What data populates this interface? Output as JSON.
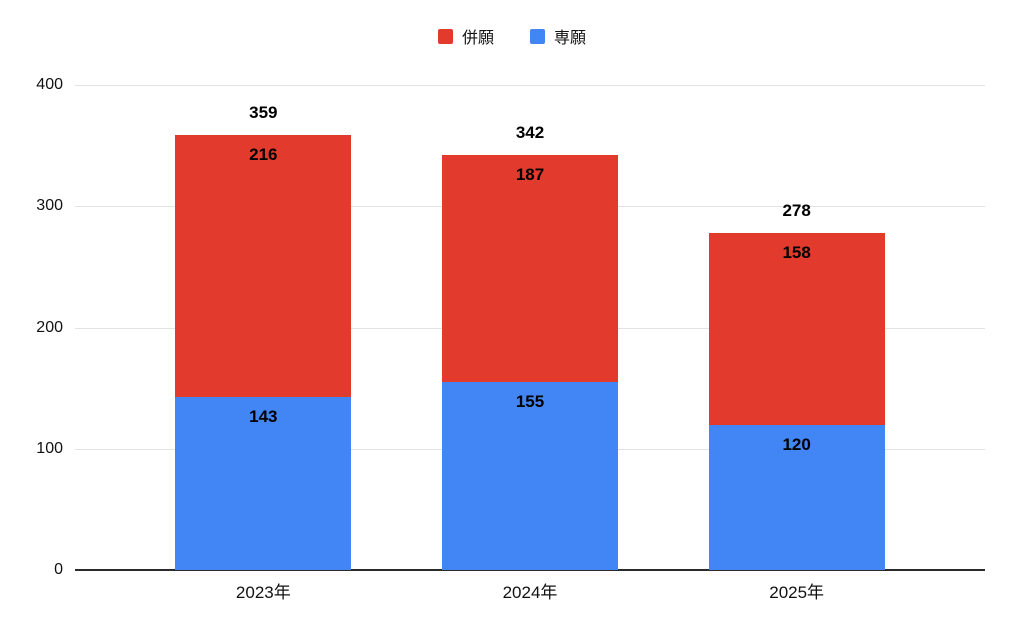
{
  "chart_data": {
    "type": "bar",
    "stacked": true,
    "title": "",
    "xlabel": "",
    "ylabel": "",
    "categories": [
      "2023年",
      "2024年",
      "2025年"
    ],
    "series": [
      {
        "name": "専願",
        "color": "#4285f4",
        "values": [
          143,
          155,
          120
        ]
      },
      {
        "name": "併願",
        "color": "#e23b2d",
        "values": [
          216,
          187,
          158
        ]
      }
    ],
    "totals": [
      359,
      342,
      278
    ],
    "legend_order": [
      "併願",
      "専願"
    ],
    "legend_position": "top",
    "ylim": [
      0,
      400
    ],
    "yticks": [
      0,
      100,
      200,
      300,
      400
    ],
    "grid": "horizontal",
    "background": "#ffffff"
  }
}
